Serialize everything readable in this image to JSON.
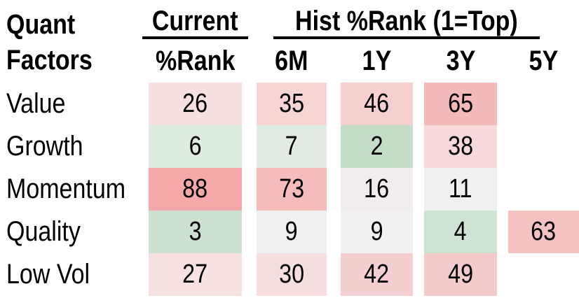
{
  "title": {
    "line1": "Quant",
    "line2": "Factors"
  },
  "header": {
    "current_group": "Current",
    "current_sub": "%Rank",
    "hist_group": "Hist %Rank (1=Top)",
    "hist_cols": [
      "6M",
      "1Y",
      "3Y",
      "5Y"
    ]
  },
  "rows": [
    {
      "label": "Value",
      "cells": [
        {
          "v": "26",
          "bg": "#f8dfe0"
        },
        {
          "v": "35",
          "bg": "#f7d5d5"
        },
        {
          "v": "46",
          "bg": "#f6cfcf"
        },
        {
          "v": "65",
          "bg": "#f4b9b9"
        },
        null
      ]
    },
    {
      "label": "Growth",
      "cells": [
        {
          "v": "6",
          "bg": "#ddecdf"
        },
        {
          "v": "7",
          "bg": "#e1ede3"
        },
        {
          "v": "2",
          "bg": "#c3ddc9"
        },
        {
          "v": "38",
          "bg": "#f7d9d9"
        },
        null
      ]
    },
    {
      "label": "Momentum",
      "cells": [
        {
          "v": "88",
          "bg": "#f5a8a8"
        },
        {
          "v": "73",
          "bg": "#f6bbbb"
        },
        {
          "v": "16",
          "bg": "#f2eded"
        },
        {
          "v": "11",
          "bg": "#f0f0ef"
        },
        null
      ]
    },
    {
      "label": "Quality",
      "cells": [
        {
          "v": "3",
          "bg": "#cde1d1"
        },
        {
          "v": "9",
          "bg": "#f0f0f0"
        },
        {
          "v": "9",
          "bg": "#f1f1f1"
        },
        {
          "v": "4",
          "bg": "#cfe3d2"
        },
        {
          "v": "63",
          "bg": "#f5c2c2"
        }
      ]
    },
    {
      "label": "Low Vol",
      "cells": [
        {
          "v": "27",
          "bg": "#f8e1e1"
        },
        {
          "v": "30",
          "bg": "#f6dede"
        },
        {
          "v": "42",
          "bg": "#f5cfcf"
        },
        {
          "v": "49",
          "bg": "#f4cbcb"
        },
        null
      ]
    }
  ],
  "colors": {
    "good_green": "#c3ddc9",
    "neutral_white": "#f1f1f1",
    "bad_red": "#f5a8a8",
    "text": "#000000",
    "background": "#ffffff"
  },
  "chart_data": {
    "type": "heatmap",
    "title": "Quant Factors — Current and Historical Percentile Ranks (1=Top)",
    "row_header": "Quant Factors",
    "column_groups": [
      {
        "label": "Current",
        "columns": [
          "%Rank"
        ]
      },
      {
        "label": "Hist %Rank (1=Top)",
        "columns": [
          "6M",
          "1Y",
          "3Y",
          "5Y"
        ]
      }
    ],
    "categories": [
      "Value",
      "Growth",
      "Momentum",
      "Quality",
      "Low Vol"
    ],
    "columns": [
      "Current %Rank",
      "6M",
      "1Y",
      "3Y",
      "5Y"
    ],
    "values": [
      [
        26,
        35,
        46,
        65,
        null
      ],
      [
        6,
        7,
        2,
        38,
        null
      ],
      [
        88,
        73,
        16,
        11,
        null
      ],
      [
        3,
        9,
        9,
        4,
        63
      ],
      [
        27,
        30,
        42,
        49,
        null
      ]
    ],
    "value_range": [
      1,
      100
    ],
    "color_scale": "green (low rank = top) through white to red (high rank = bottom)",
    "legend_position": "none",
    "grid": false
  }
}
